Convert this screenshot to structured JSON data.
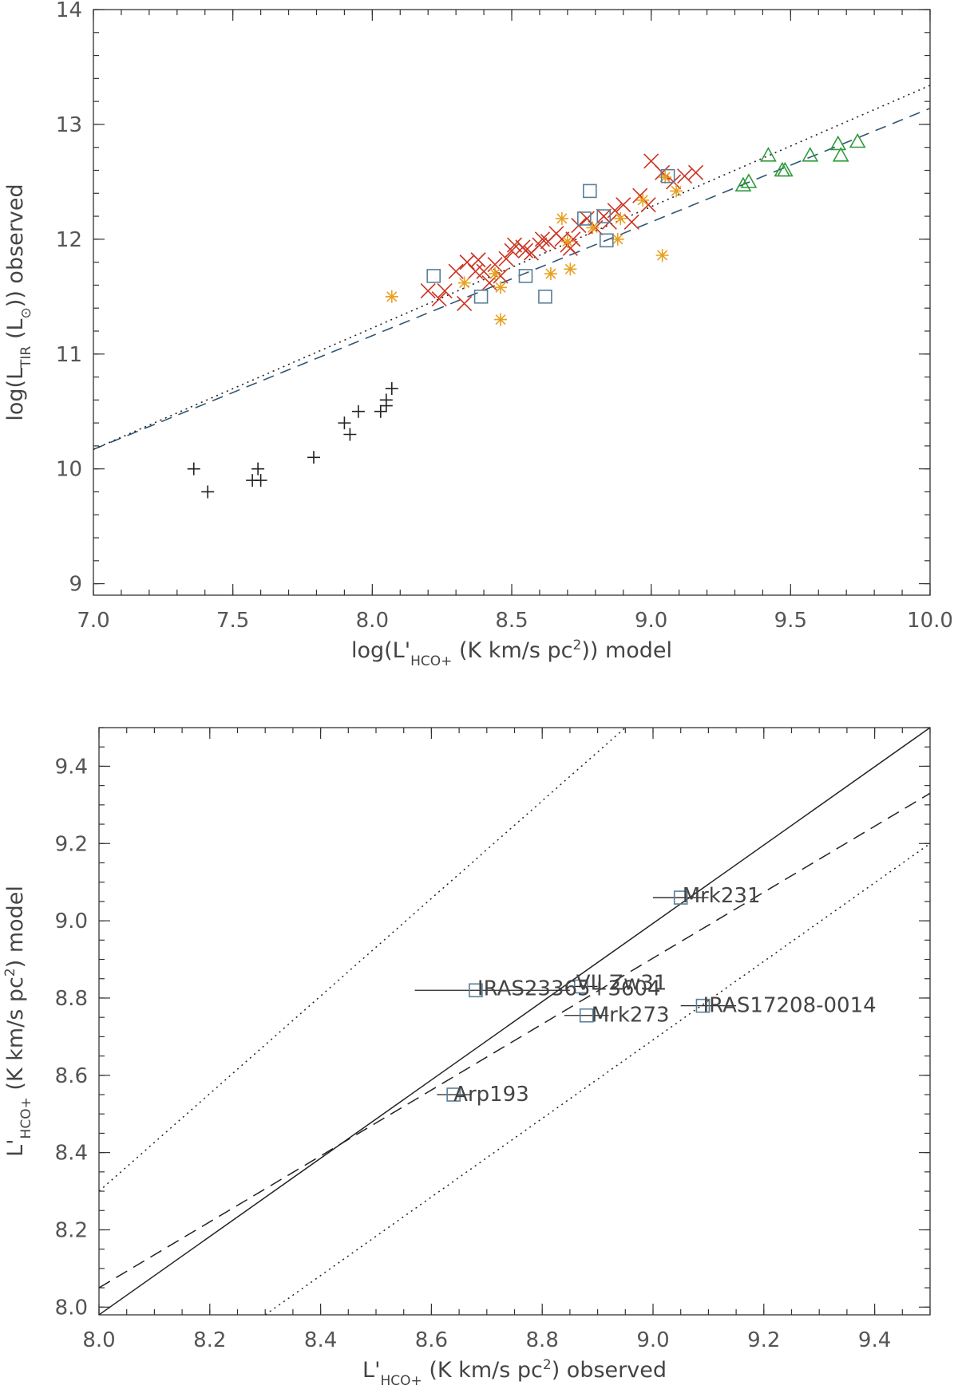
{
  "chart_data": [
    {
      "type": "scatter",
      "xlabel": {
        "pre": "log(L'",
        "sub": "HCO+",
        "mid": " (K km/s pc",
        "sup": "2",
        "post": ")) model"
      },
      "ylabel": {
        "pre": "log(L",
        "sub": "TIR",
        "mid": " (L",
        "sub2": "⊙",
        "post": ")) observed"
      },
      "xlim": [
        7.0,
        10.0
      ],
      "ylim": [
        8.9,
        14.0
      ],
      "xticks": [
        "7.0",
        "7.5",
        "8.0",
        "8.5",
        "9.0",
        "9.5",
        "10.0"
      ],
      "yticks": [
        "9",
        "10",
        "11",
        "12",
        "13",
        "14"
      ],
      "colors": {
        "cross": "#cc3322",
        "star": "#e8a020",
        "square": "#5a7f98",
        "triangle": "#2e9a3a",
        "plus": "#222222",
        "dashed": "#2f5775",
        "dotted": "#222222"
      },
      "series": [
        {
          "marker": "plus",
          "color": "#222222",
          "points": [
            [
              7.36,
              10.0
            ],
            [
              7.41,
              9.8
            ],
            [
              7.57,
              9.9
            ],
            [
              7.59,
              10.0
            ],
            [
              7.6,
              9.9
            ],
            [
              7.79,
              10.1
            ],
            [
              7.9,
              10.4
            ],
            [
              7.92,
              10.3
            ],
            [
              7.95,
              10.5
            ],
            [
              8.03,
              10.5
            ],
            [
              8.05,
              10.6
            ],
            [
              8.07,
              10.7
            ],
            [
              8.05,
              10.55
            ]
          ]
        },
        {
          "marker": "cross",
          "color": "#cc3322",
          "points": [
            [
              8.2,
              11.55
            ],
            [
              8.24,
              11.48
            ],
            [
              8.26,
              11.55
            ],
            [
              8.3,
              11.72
            ],
            [
              8.33,
              11.44
            ],
            [
              8.34,
              11.8
            ],
            [
              8.37,
              11.72
            ],
            [
              8.38,
              11.82
            ],
            [
              8.4,
              11.72
            ],
            [
              8.42,
              11.62
            ],
            [
              8.44,
              11.78
            ],
            [
              8.46,
              11.68
            ],
            [
              8.48,
              11.83
            ],
            [
              8.5,
              11.9
            ],
            [
              8.51,
              11.95
            ],
            [
              8.54,
              11.93
            ],
            [
              8.57,
              11.88
            ],
            [
              8.6,
              11.95
            ],
            [
              8.61,
              12.0
            ],
            [
              8.63,
              11.98
            ],
            [
              8.66,
              12.05
            ],
            [
              8.68,
              12.0
            ],
            [
              8.7,
              11.95
            ],
            [
              8.72,
              12.0
            ],
            [
              8.74,
              12.12
            ],
            [
              8.77,
              12.18
            ],
            [
              8.8,
              12.1
            ],
            [
              8.83,
              12.2
            ],
            [
              8.85,
              12.15
            ],
            [
              8.87,
              12.25
            ],
            [
              8.9,
              12.3
            ],
            [
              8.93,
              12.15
            ],
            [
              8.96,
              12.38
            ],
            [
              8.99,
              12.3
            ],
            [
              9.0,
              12.68
            ],
            [
              9.04,
              12.58
            ],
            [
              9.08,
              12.5
            ],
            [
              9.12,
              12.55
            ],
            [
              9.16,
              12.58
            ],
            [
              8.71,
              11.92
            ],
            [
              8.55,
              11.9
            ]
          ]
        },
        {
          "marker": "star",
          "color": "#e8a020",
          "points": [
            [
              8.07,
              11.5
            ],
            [
              8.33,
              11.62
            ],
            [
              8.44,
              11.7
            ],
            [
              8.46,
              11.58
            ],
            [
              8.46,
              11.3
            ],
            [
              8.64,
              11.7
            ],
            [
              8.68,
              12.18
            ],
            [
              8.7,
              11.98
            ],
            [
              8.71,
              11.74
            ],
            [
              8.79,
              12.1
            ],
            [
              8.88,
              12.0
            ],
            [
              8.89,
              12.18
            ],
            [
              8.97,
              12.34
            ],
            [
              9.04,
              11.86
            ],
            [
              9.05,
              12.54
            ],
            [
              9.09,
              12.42
            ]
          ]
        },
        {
          "marker": "square",
          "color": "#5a7f98",
          "points": [
            [
              8.22,
              11.68
            ],
            [
              8.39,
              11.5
            ],
            [
              8.55,
              11.68
            ],
            [
              8.62,
              11.5
            ],
            [
              8.76,
              12.18
            ],
            [
              8.78,
              12.42
            ],
            [
              8.83,
              12.2
            ],
            [
              8.84,
              11.99
            ],
            [
              9.06,
              12.55
            ]
          ]
        },
        {
          "marker": "triangle",
          "color": "#2e9a3a",
          "points": [
            [
              9.33,
              12.47
            ],
            [
              9.35,
              12.5
            ],
            [
              9.42,
              12.73
            ],
            [
              9.47,
              12.6
            ],
            [
              9.48,
              12.6
            ],
            [
              9.57,
              12.73
            ],
            [
              9.67,
              12.83
            ],
            [
              9.68,
              12.73
            ],
            [
              9.74,
              12.85
            ]
          ]
        }
      ],
      "lines": [
        {
          "style": "dashed",
          "color": "#2f5775",
          "points": [
            [
              7.0,
              10.17
            ],
            [
              10.0,
              13.14
            ]
          ]
        },
        {
          "style": "dotted",
          "color": "#222222",
          "points": [
            [
              7.0,
              10.17
            ],
            [
              10.0,
              13.34
            ]
          ]
        }
      ]
    },
    {
      "type": "scatter",
      "xlabel": {
        "pre": "L'",
        "sub": "HCO+",
        "mid": "  (K km/s pc",
        "sup": "2",
        "post": ") observed"
      },
      "ylabel": {
        "pre": "L'",
        "sub": "HCO+",
        "mid": "  (K km/s pc",
        "sup": "2",
        "post": ") model"
      },
      "xlim": [
        8.0,
        9.5
      ],
      "ylim": [
        7.98,
        9.5
      ],
      "xticks": [
        "8.0",
        "8.2",
        "8.4",
        "8.6",
        "8.8",
        "9.0",
        "9.2",
        "9.4"
      ],
      "yticks": [
        "8.0",
        "8.2",
        "8.4",
        "8.6",
        "8.8",
        "9.0",
        "9.2",
        "9.4"
      ],
      "points": [
        {
          "name": "Mrk231",
          "x": 9.05,
          "y": 9.06,
          "xerr": [
            9.0,
            9.1
          ]
        },
        {
          "name": "IRAS23365+3604",
          "x": 8.68,
          "y": 8.82,
          "xerr": [
            8.57,
            8.85
          ]
        },
        {
          "name": "VII Zw31",
          "x": 8.87,
          "y": 8.83,
          "xerr": [
            8.85,
            8.9
          ]
        },
        {
          "name": "Mrk273",
          "x": 8.88,
          "y": 8.755,
          "xerr": [
            8.84,
            8.92
          ]
        },
        {
          "name": "IRAS17208-0014",
          "x": 9.09,
          "y": 8.78,
          "xerr": [
            9.05,
            9.15
          ]
        },
        {
          "name": "Arp193",
          "x": 8.64,
          "y": 8.55,
          "xerr": [
            8.61,
            8.67
          ]
        }
      ],
      "labels_shown": [
        "Mrk231",
        "IRAS23365+3604",
        "VII Zw31",
        "Mrk273",
        "IRAS17208-0014",
        "Arp193"
      ],
      "lines": [
        {
          "style": "solid",
          "points": [
            [
              8.0,
              7.98
            ],
            [
              9.5,
              9.5
            ]
          ]
        },
        {
          "style": "dashed",
          "points": [
            [
              8.0,
              8.05
            ],
            [
              9.5,
              9.33
            ]
          ]
        },
        {
          "style": "dotted",
          "points": [
            [
              8.0,
              8.3
            ],
            [
              8.95,
              9.5
            ]
          ]
        },
        {
          "style": "dotted",
          "points": [
            [
              8.3,
              7.98
            ],
            [
              9.5,
              9.2
            ]
          ]
        }
      ],
      "colors": {
        "square": "#5a7f98",
        "lines": "#222222"
      }
    }
  ]
}
